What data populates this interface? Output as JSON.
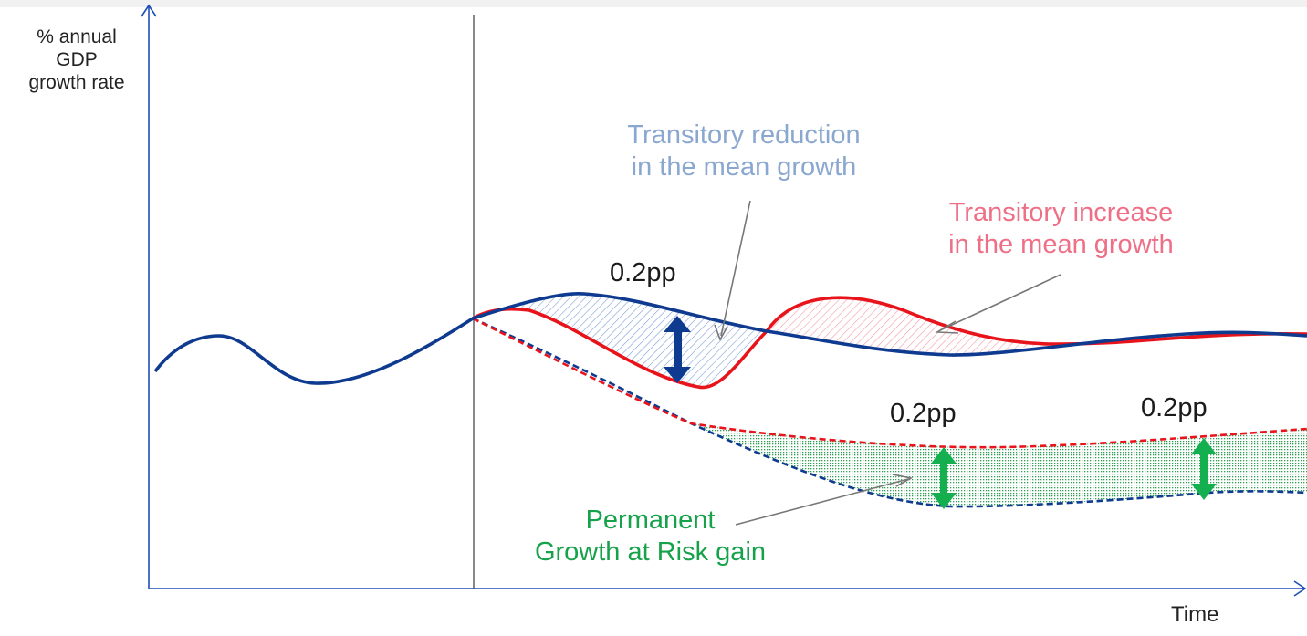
{
  "y_axis": {
    "label_lines": [
      "% annual",
      "GDP",
      "growth rate"
    ]
  },
  "x_axis": {
    "label": "Time"
  },
  "gaps": {
    "first": "0.2pp",
    "second": "0.2pp",
    "third": "0.2pp"
  },
  "annotations": {
    "transitory_reduction": [
      "Transitory reduction",
      "in the mean growth"
    ],
    "transitory_increase": [
      "Transitory increase",
      "in the mean growth"
    ],
    "permanent_gain": [
      "Permanent",
      "Growth at Risk gain"
    ]
  },
  "colors": {
    "baseline": "#0e3a8f",
    "scenario": "#e8141c",
    "gap_mean": "#0e3a8f",
    "gap_risk": "#14b050",
    "hatch_blue": "#7e9fd6",
    "hatch_red": "#f29aa9",
    "dots_green": "#2c9e52",
    "leader": "#777777"
  }
}
